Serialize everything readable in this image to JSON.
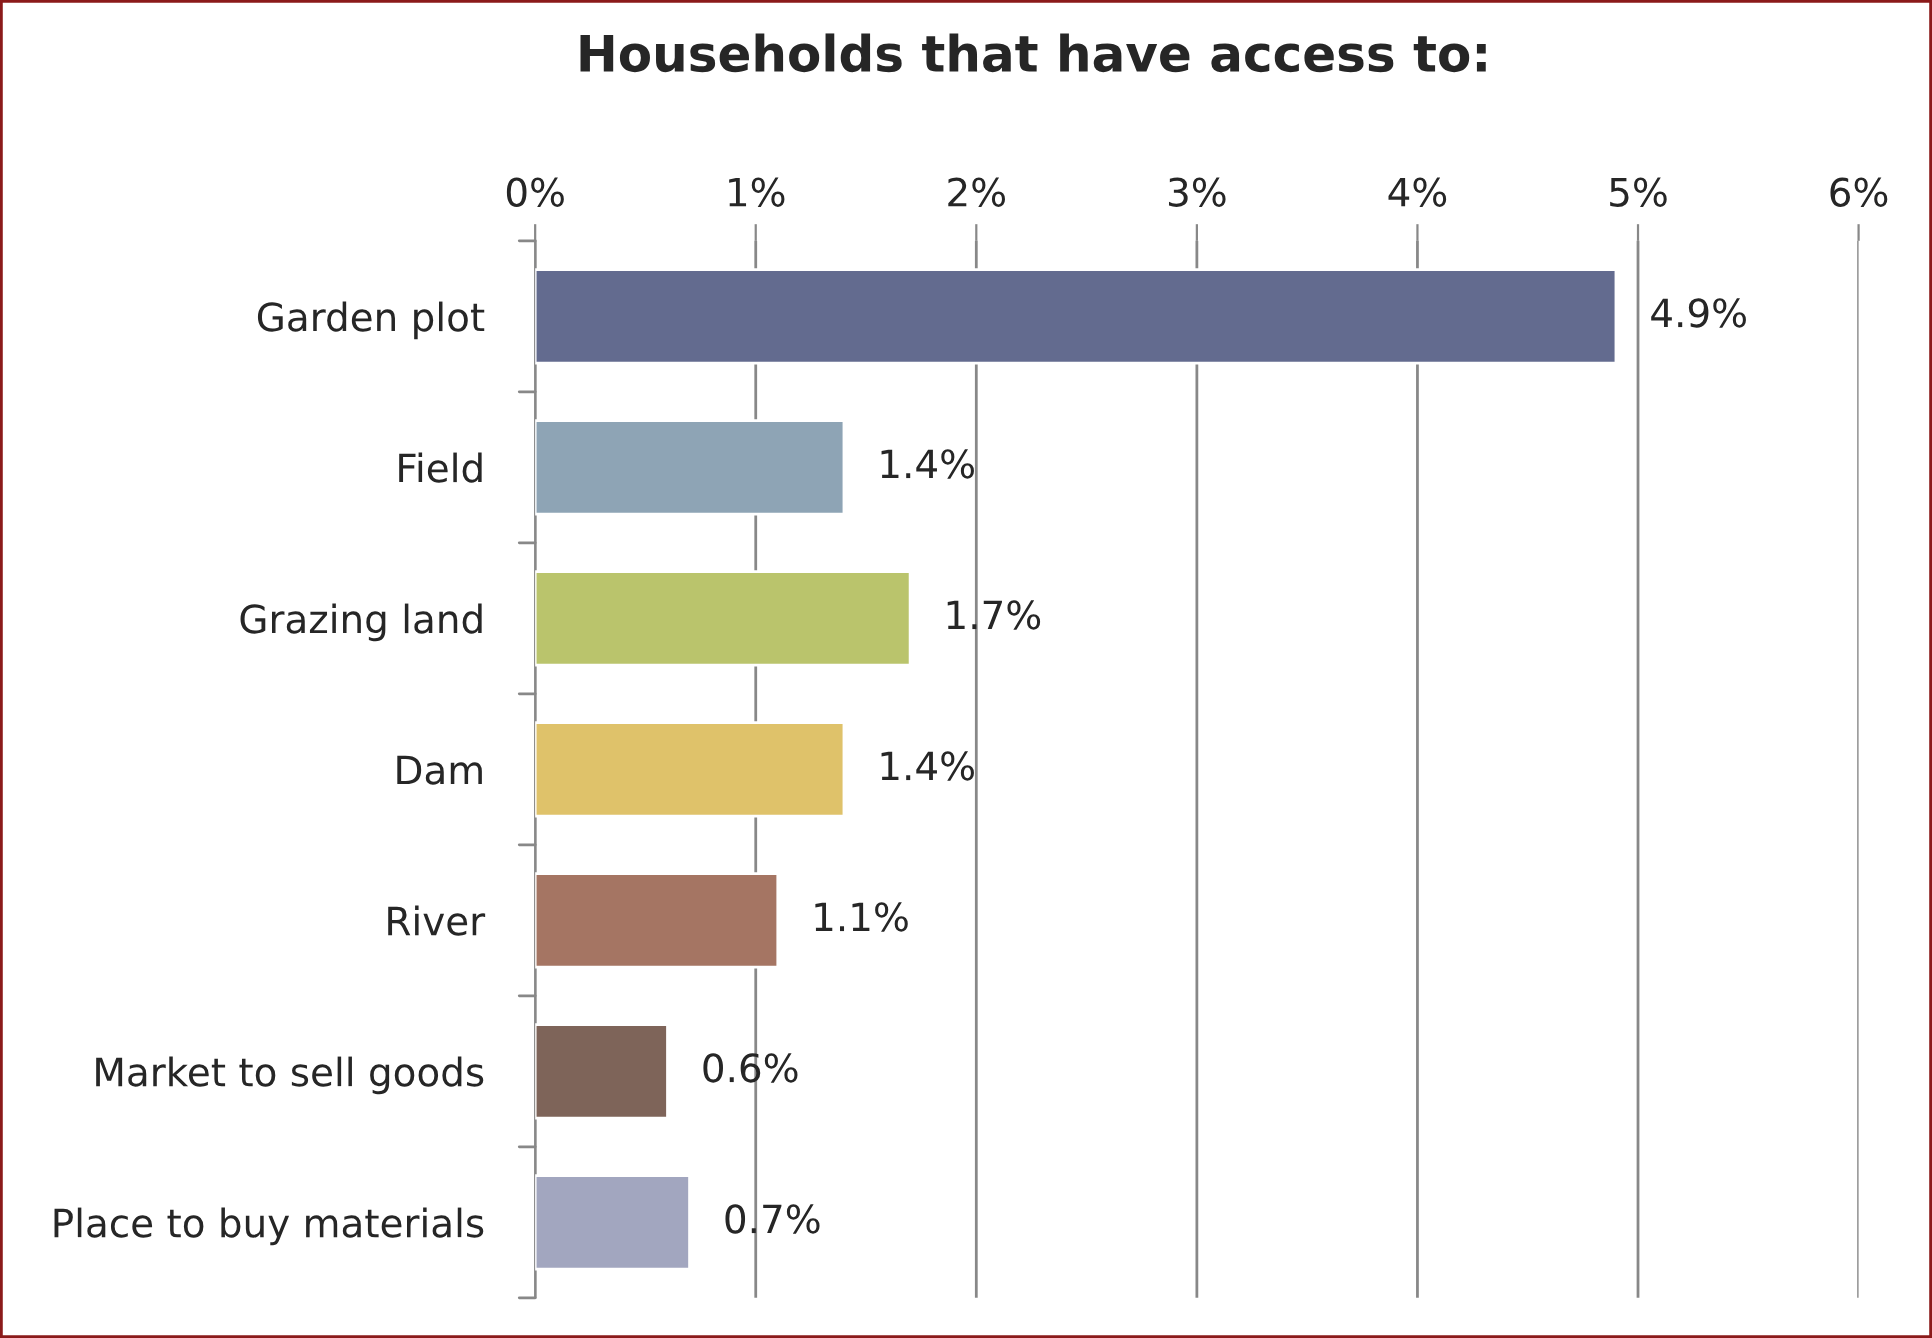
{
  "chart_data": {
    "type": "bar",
    "orientation": "horizontal",
    "title": "Households that have access to:",
    "categories": [
      "Garden plot",
      "Field",
      "Grazing land",
      "Dam",
      "River",
      "Market to sell goods",
      "Place to buy materials"
    ],
    "values": [
      4.9,
      1.4,
      1.7,
      1.4,
      1.1,
      0.6,
      0.7
    ],
    "value_labels": [
      "4.9%",
      "1.4%",
      "1.7%",
      "1.4%",
      "1.1%",
      "0.6%",
      "0.7%"
    ],
    "colors": [
      "#636b8f",
      "#8ea4b5",
      "#bac46c",
      "#dfc26a",
      "#a57563",
      "#7e6459",
      "#a2a6bf"
    ],
    "xlim": [
      0,
      6
    ],
    "xticks": [
      {
        "value": 0,
        "label": "0%"
      },
      {
        "value": 1,
        "label": "1%"
      },
      {
        "value": 2,
        "label": "2%"
      },
      {
        "value": 3,
        "label": "3%"
      },
      {
        "value": 4,
        "label": "4%"
      },
      {
        "value": 5,
        "label": "5%"
      },
      {
        "value": 6,
        "label": "6%"
      }
    ],
    "grid": "x",
    "legend": false
  }
}
